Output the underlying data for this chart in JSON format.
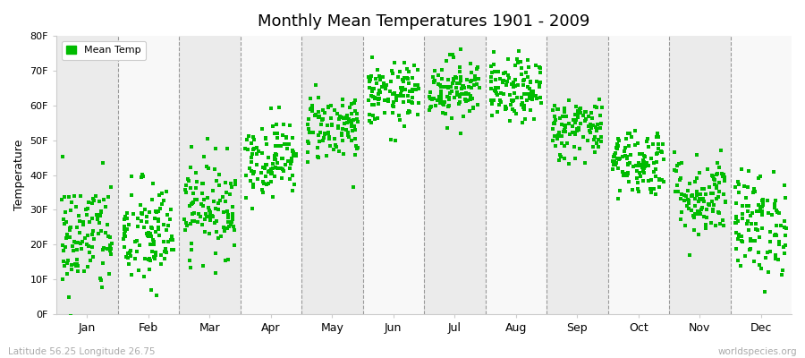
{
  "title": "Monthly Mean Temperatures 1901 - 2009",
  "ylabel": "Temperature",
  "xlabel_bottom_left": "Latitude 56.25 Longitude 26.75",
  "xlabel_bottom_right": "worldspecies.org",
  "legend_label": "Mean Temp",
  "dot_color": "#00bb00",
  "background_color": "#ffffff",
  "plot_bg_color": "#ffffff",
  "band_color_even": "#ebebeb",
  "band_color_odd": "#f8f8f8",
  "ylim": [
    0,
    80
  ],
  "ytick_labels": [
    "0F",
    "10F",
    "20F",
    "30F",
    "40F",
    "50F",
    "60F",
    "70F",
    "80F"
  ],
  "ytick_values": [
    0,
    10,
    20,
    30,
    40,
    50,
    60,
    70,
    80
  ],
  "months": [
    "Jan",
    "Feb",
    "Mar",
    "Apr",
    "May",
    "Jun",
    "Jul",
    "Aug",
    "Sep",
    "Oct",
    "Nov",
    "Dec"
  ],
  "monthly_mean_F": [
    22.0,
    22.5,
    31.0,
    45.0,
    54.0,
    63.0,
    65.0,
    64.0,
    53.5,
    44.0,
    34.0,
    26.0
  ],
  "monthly_std_F": [
    8.5,
    8.0,
    7.0,
    5.5,
    5.0,
    4.5,
    4.5,
    4.5,
    4.5,
    5.0,
    6.0,
    7.5
  ],
  "n_years": 109,
  "seed": 42
}
